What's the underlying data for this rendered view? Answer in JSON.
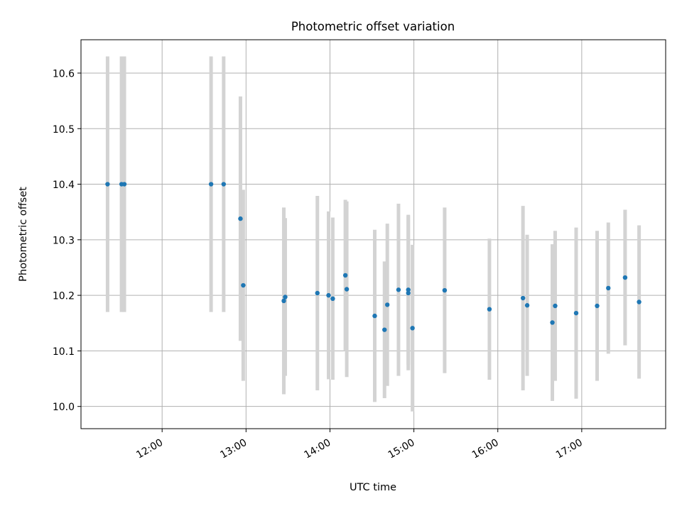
{
  "chart_data": {
    "type": "scatter",
    "title": "Photometric offset variation",
    "xlabel": "UTC time",
    "ylabel": "Photometric offset",
    "x_tick_labels": [
      "12:00",
      "13:00",
      "14:00",
      "15:00",
      "16:00",
      "17:00"
    ],
    "y_tick_labels": [
      "10.0",
      "10.1",
      "10.2",
      "10.3",
      "10.4",
      "10.5",
      "10.6"
    ],
    "y_ticks": [
      10.0,
      10.1,
      10.2,
      10.3,
      10.4,
      10.5,
      10.6
    ],
    "ylim": [
      9.96,
      10.66
    ],
    "xlim": [
      "11:02",
      "18:00"
    ],
    "grid": true,
    "point_color": "#1f77b4",
    "errorbar_color": "#d3d3d3",
    "points": [
      {
        "x": "11:21",
        "y": 10.4,
        "err": 0.23
      },
      {
        "x": "11:31",
        "y": 10.4,
        "err": 0.23
      },
      {
        "x": "11:33",
        "y": 10.4,
        "err": 0.23
      },
      {
        "x": "12:35",
        "y": 10.4,
        "err": 0.23
      },
      {
        "x": "12:44",
        "y": 10.4,
        "err": 0.23
      },
      {
        "x": "12:56",
        "y": 10.338,
        "err": 0.22
      },
      {
        "x": "12:58",
        "y": 10.218,
        "err": 0.172
      },
      {
        "x": "13:27",
        "y": 10.19,
        "err": 0.168
      },
      {
        "x": "13:28",
        "y": 10.197,
        "err": 0.142
      },
      {
        "x": "13:51",
        "y": 10.204,
        "err": 0.175
      },
      {
        "x": "13:59",
        "y": 10.2,
        "err": 0.151
      },
      {
        "x": "14:02",
        "y": 10.194,
        "err": 0.146
      },
      {
        "x": "14:11",
        "y": 10.236,
        "err": 0.136
      },
      {
        "x": "14:12",
        "y": 10.211,
        "err": 0.158
      },
      {
        "x": "14:32",
        "y": 10.163,
        "err": 0.155
      },
      {
        "x": "14:39",
        "y": 10.138,
        "err": 0.123
      },
      {
        "x": "14:41",
        "y": 10.183,
        "err": 0.146
      },
      {
        "x": "14:49",
        "y": 10.21,
        "err": 0.155
      },
      {
        "x": "14:56",
        "y": 10.21,
        "err": 0.135
      },
      {
        "x": "14:56",
        "y": 10.204,
        "err": 0.139
      },
      {
        "x": "14:59",
        "y": 10.141,
        "err": 0.15
      },
      {
        "x": "15:22",
        "y": 10.209,
        "err": 0.149
      },
      {
        "x": "15:54",
        "y": 10.175,
        "err": 0.127
      },
      {
        "x": "16:18",
        "y": 10.195,
        "err": 0.166
      },
      {
        "x": "16:21",
        "y": 10.182,
        "err": 0.127
      },
      {
        "x": "16:39",
        "y": 10.151,
        "err": 0.141
      },
      {
        "x": "16:41",
        "y": 10.181,
        "err": 0.135
      },
      {
        "x": "16:56",
        "y": 10.168,
        "err": 0.154
      },
      {
        "x": "17:11",
        "y": 10.181,
        "err": 0.135
      },
      {
        "x": "17:19",
        "y": 10.213,
        "err": 0.118
      },
      {
        "x": "17:31",
        "y": 10.232,
        "err": 0.122
      },
      {
        "x": "17:41",
        "y": 10.188,
        "err": 0.138
      }
    ]
  }
}
